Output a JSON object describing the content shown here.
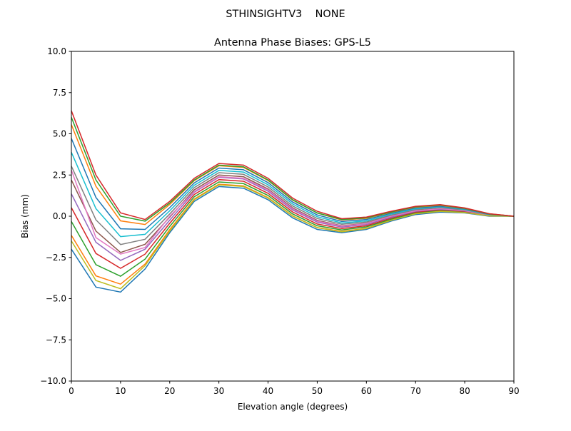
{
  "chart_data": {
    "type": "line",
    "suptitle": "STHINSIGHTV3    NONE",
    "title": "Antenna Phase Biases: GPS-L5",
    "xlabel": "Elevation angle (degrees)",
    "ylabel": "Bias (mm)",
    "xlim": [
      0,
      90
    ],
    "ylim": [
      -10,
      10
    ],
    "xticks": [
      0,
      10,
      20,
      30,
      40,
      50,
      60,
      70,
      80,
      90
    ],
    "yticks": [
      -10,
      -7.5,
      -5,
      -2.5,
      0,
      2.5,
      5,
      7.5,
      10
    ],
    "xtick_labels": [
      "0",
      "10",
      "20",
      "30",
      "40",
      "50",
      "60",
      "70",
      "80",
      "90"
    ],
    "ytick_labels": [
      "−10.0",
      "−7.5",
      "−5.0",
      "−2.5",
      "0.0",
      "2.5",
      "5.0",
      "7.5",
      "10.0"
    ],
    "grid": false,
    "legend": "none",
    "colors": [
      "#1f77b4",
      "#ff7f0e",
      "#2ca02c",
      "#d62728",
      "#9467bd",
      "#8c564b",
      "#e377c2",
      "#7f7f7f",
      "#bcbd22",
      "#17becf"
    ],
    "x": [
      0,
      5,
      10,
      15,
      20,
      25,
      30,
      35,
      40,
      45,
      50,
      55,
      60,
      65,
      70,
      75,
      80,
      85,
      90
    ],
    "series": [
      {
        "values": [
          -2.0,
          -4.3,
          -4.6,
          -3.2,
          -1.0,
          0.9,
          1.8,
          1.7,
          1.0,
          -0.1,
          -0.8,
          -1.0,
          -0.8,
          -0.3,
          0.1,
          0.25,
          0.2,
          0.0,
          0.0
        ]
      },
      {
        "values": [
          -1.16,
          -3.62,
          -4.12,
          -2.9,
          -0.81,
          1.04,
          1.94,
          1.84,
          1.13,
          0.02,
          -0.69,
          -0.92,
          -0.73,
          -0.24,
          0.15,
          0.3,
          0.23,
          0.02,
          0
        ]
      },
      {
        "values": [
          -0.32,
          -2.94,
          -3.64,
          -2.6,
          -0.62,
          1.18,
          2.08,
          1.98,
          1.26,
          0.14,
          -0.58,
          -0.83,
          -0.65,
          -0.18,
          0.2,
          0.34,
          0.26,
          0.03,
          0
        ]
      },
      {
        "values": [
          0.52,
          -2.26,
          -3.16,
          -2.3,
          -0.43,
          1.32,
          2.22,
          2.12,
          1.39,
          0.26,
          -0.47,
          -0.75,
          -0.58,
          -0.12,
          0.25,
          0.39,
          0.29,
          0.05,
          0
        ]
      },
      {
        "values": [
          1.36,
          -1.58,
          -2.68,
          -2.0,
          -0.24,
          1.46,
          2.36,
          2.26,
          1.52,
          0.38,
          -0.36,
          -0.66,
          -0.5,
          -0.06,
          0.3,
          0.43,
          0.32,
          0.06,
          0
        ]
      },
      {
        "values": [
          2.2,
          -0.9,
          -2.2,
          -1.7,
          -0.05,
          1.6,
          2.5,
          2.4,
          1.65,
          0.5,
          -0.25,
          -0.58,
          -0.43,
          0,
          0.35,
          0.48,
          0.35,
          0.08,
          0
        ]
      },
      {
        "values": [
          2.8,
          -1.3,
          -2.3,
          -1.9,
          0.0,
          1.5,
          2.4,
          2.3,
          1.6,
          0.45,
          -0.3,
          -0.6,
          -0.45,
          0.0,
          0.33,
          0.46,
          0.34,
          0.07,
          0
        ]
      },
      {
        "values": [
          3.04,
          -0.22,
          -1.72,
          -1.4,
          0.14,
          1.74,
          2.64,
          2.54,
          1.78,
          0.62,
          -0.14,
          -0.49,
          -0.35,
          0.06,
          0.4,
          0.52,
          0.38,
          0.09,
          0
        ]
      },
      {
        "values": [
          -1.5,
          -3.9,
          -4.4,
          -3.0,
          -0.9,
          1.0,
          1.9,
          1.8,
          1.1,
          0.0,
          -0.7,
          -0.95,
          -0.75,
          -0.25,
          0.15,
          0.3,
          0.22,
          0.02,
          0
        ]
      },
      {
        "values": [
          3.88,
          0.46,
          -1.24,
          -1.1,
          0.33,
          1.88,
          2.78,
          2.68,
          1.91,
          0.74,
          -0.03,
          -0.41,
          -0.28,
          0.12,
          0.45,
          0.57,
          0.41,
          0.11,
          0
        ]
      },
      {
        "values": [
          4.72,
          1.14,
          -0.76,
          -0.8,
          0.52,
          2.02,
          2.92,
          2.82,
          2.04,
          0.86,
          0.08,
          -0.32,
          -0.2,
          0.18,
          0.5,
          0.61,
          0.44,
          0.12,
          0
        ]
      },
      {
        "values": [
          5.56,
          1.82,
          -0.28,
          -0.5,
          0.71,
          2.16,
          3.06,
          2.96,
          2.17,
          0.98,
          0.19,
          -0.23,
          -0.13,
          0.24,
          0.55,
          0.66,
          0.47,
          0.14,
          0
        ]
      },
      {
        "values": [
          6.0,
          2.2,
          0.0,
          -0.3,
          0.8,
          2.2,
          3.1,
          3.0,
          2.2,
          1.0,
          0.2,
          -0.2,
          -0.1,
          0.25,
          0.57,
          0.68,
          0.48,
          0.14,
          0
        ]
      },
      {
        "values": [
          6.4,
          2.5,
          0.2,
          -0.2,
          0.9,
          2.3,
          3.2,
          3.1,
          2.3,
          1.1,
          0.3,
          -0.15,
          -0.05,
          0.3,
          0.6,
          0.7,
          0.5,
          0.15,
          0.0
        ]
      }
    ]
  }
}
